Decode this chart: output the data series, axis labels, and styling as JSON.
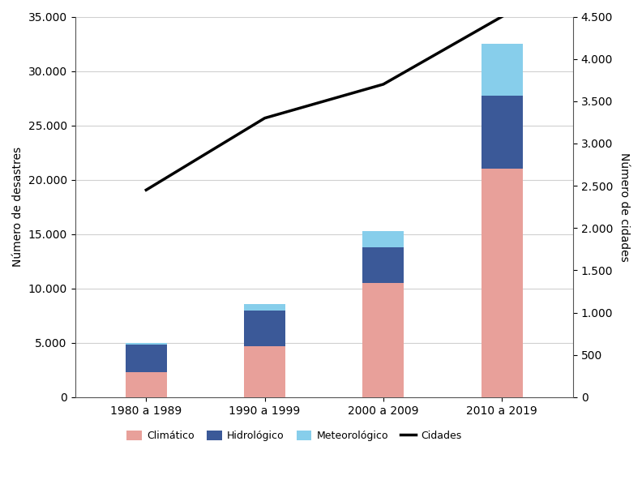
{
  "categories": [
    "1980 a 1989",
    "1990 a 1999",
    "2000 a 2009",
    "2010 a 2019"
  ],
  "climatico": [
    2300,
    4700,
    10500,
    21000
  ],
  "hidrologico": [
    2500,
    3300,
    3300,
    6700
  ],
  "meteorologico": [
    200,
    600,
    1500,
    4800
  ],
  "cidades": [
    2450,
    3300,
    3700,
    4500
  ],
  "bar_width": 0.35,
  "color_climatico": "#e8a09a",
  "color_hidrologico": "#3b5998",
  "color_meteorologico": "#87ceeb",
  "color_cidades": "#000000",
  "ylabel_left": "Número de desastres",
  "ylabel_right": "Número de cidades",
  "ylim_left": [
    0,
    35000
  ],
  "ylim_right": [
    0,
    4500
  ],
  "yticks_left": [
    0,
    5000,
    10000,
    15000,
    20000,
    25000,
    30000,
    35000
  ],
  "yticks_right": [
    0,
    500,
    1000,
    1500,
    2000,
    2500,
    3000,
    3500,
    4000,
    4500
  ],
  "legend_labels": [
    "Climático",
    "Hidrológico",
    "Meteorológico",
    "Cidades"
  ],
  "background_color": "#ffffff",
  "grid_color": "#d0d0d0"
}
